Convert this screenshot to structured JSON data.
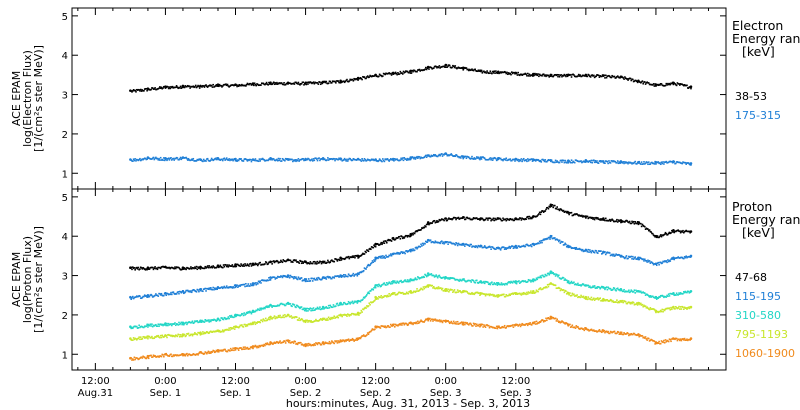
{
  "chart_data": [
    {
      "type": "scatter",
      "panel": "electron",
      "ylabel_lines": [
        "ACE EPAM",
        "log(Electron Flux)",
        "[1/(cm²s ster MeV)]"
      ],
      "legend_title_lines": [
        "Electron",
        "Energy range",
        "[keV]"
      ],
      "ylim": [
        0.6,
        5.2
      ],
      "yticks": [
        1,
        2,
        3,
        4,
        5
      ],
      "series": [
        {
          "name": "38-53",
          "color": "#000000",
          "x": [
            6,
            9,
            12,
            15,
            18,
            21,
            24,
            27,
            30,
            33,
            36,
            39,
            42,
            45,
            48,
            51,
            54,
            57,
            60,
            63,
            66,
            69,
            72,
            75,
            78,
            81,
            84,
            87,
            90,
            93,
            96,
            99,
            102
          ],
          "y": [
            3.1,
            3.15,
            3.2,
            3.22,
            3.22,
            3.25,
            3.25,
            3.28,
            3.3,
            3.3,
            3.3,
            3.32,
            3.35,
            3.42,
            3.5,
            3.55,
            3.6,
            3.7,
            3.75,
            3.68,
            3.6,
            3.58,
            3.55,
            3.52,
            3.5,
            3.5,
            3.5,
            3.48,
            3.45,
            3.35,
            3.25,
            3.3,
            3.2
          ]
        },
        {
          "name": "175-315",
          "color": "#1f7fd6",
          "x": [
            6,
            9,
            12,
            15,
            18,
            21,
            24,
            27,
            30,
            33,
            36,
            39,
            42,
            45,
            48,
            51,
            54,
            57,
            60,
            63,
            66,
            69,
            72,
            75,
            78,
            81,
            84,
            87,
            90,
            93,
            96,
            99,
            102
          ],
          "y": [
            1.35,
            1.4,
            1.38,
            1.4,
            1.35,
            1.38,
            1.36,
            1.35,
            1.38,
            1.35,
            1.36,
            1.38,
            1.37,
            1.36,
            1.35,
            1.36,
            1.4,
            1.45,
            1.5,
            1.42,
            1.4,
            1.38,
            1.36,
            1.35,
            1.33,
            1.32,
            1.33,
            1.3,
            1.3,
            1.28,
            1.28,
            1.3,
            1.25
          ]
        }
      ]
    },
    {
      "type": "scatter",
      "panel": "proton",
      "ylabel_lines": [
        "ACE EPAM",
        "log(Proton Flux)",
        "[1/(cm²s ster MeV)]"
      ],
      "legend_title_lines": [
        "Proton",
        "Energy range",
        "[keV]"
      ],
      "ylim": [
        0.6,
        5.2
      ],
      "yticks": [
        1,
        2,
        3,
        4,
        5
      ],
      "series": [
        {
          "name": "47-68",
          "color": "#000000",
          "x": [
            6,
            9,
            12,
            15,
            18,
            21,
            24,
            27,
            30,
            33,
            36,
            39,
            42,
            45,
            48,
            51,
            54,
            57,
            60,
            63,
            66,
            69,
            72,
            75,
            78,
            81,
            84,
            87,
            90,
            93,
            96,
            99,
            102
          ],
          "y": [
            3.2,
            3.2,
            3.22,
            3.2,
            3.22,
            3.25,
            3.28,
            3.3,
            3.35,
            3.4,
            3.35,
            3.35,
            3.45,
            3.5,
            3.8,
            3.95,
            4.05,
            4.35,
            4.45,
            4.48,
            4.45,
            4.45,
            4.45,
            4.5,
            4.8,
            4.6,
            4.5,
            4.45,
            4.4,
            4.35,
            4.0,
            4.15,
            4.12
          ]
        },
        {
          "name": "115-195",
          "color": "#1f7fd6",
          "x": [
            6,
            9,
            12,
            15,
            18,
            21,
            24,
            27,
            30,
            33,
            36,
            39,
            42,
            45,
            48,
            51,
            54,
            57,
            60,
            63,
            66,
            69,
            72,
            75,
            78,
            81,
            84,
            87,
            90,
            93,
            96,
            99,
            102
          ],
          "y": [
            2.45,
            2.5,
            2.55,
            2.6,
            2.65,
            2.7,
            2.75,
            2.8,
            2.95,
            3.0,
            2.9,
            2.95,
            3.0,
            3.05,
            3.45,
            3.55,
            3.65,
            3.9,
            3.85,
            3.8,
            3.75,
            3.7,
            3.75,
            3.8,
            4.0,
            3.75,
            3.65,
            3.6,
            3.5,
            3.45,
            3.3,
            3.45,
            3.5
          ]
        },
        {
          "name": "310-580",
          "color": "#22d6c6",
          "x": [
            6,
            9,
            12,
            15,
            18,
            21,
            24,
            27,
            30,
            33,
            36,
            39,
            42,
            45,
            48,
            51,
            54,
            57,
            60,
            63,
            66,
            69,
            72,
            75,
            78,
            81,
            84,
            87,
            90,
            93,
            96,
            99,
            102
          ],
          "y": [
            1.7,
            1.75,
            1.78,
            1.8,
            1.85,
            1.9,
            2.0,
            2.1,
            2.25,
            2.3,
            2.15,
            2.2,
            2.3,
            2.35,
            2.75,
            2.85,
            2.9,
            3.05,
            2.95,
            2.9,
            2.85,
            2.8,
            2.85,
            2.9,
            3.1,
            2.85,
            2.75,
            2.7,
            2.65,
            2.6,
            2.45,
            2.55,
            2.6
          ]
        },
        {
          "name": "795-1193",
          "color": "#c8e62c",
          "x": [
            6,
            9,
            12,
            15,
            18,
            21,
            24,
            27,
            30,
            33,
            36,
            39,
            42,
            45,
            48,
            51,
            54,
            57,
            60,
            63,
            66,
            69,
            72,
            75,
            78,
            81,
            84,
            87,
            90,
            93,
            96,
            99,
            102
          ],
          "y": [
            1.4,
            1.45,
            1.48,
            1.5,
            1.55,
            1.6,
            1.7,
            1.8,
            1.95,
            2.0,
            1.85,
            1.9,
            2.0,
            2.05,
            2.45,
            2.55,
            2.6,
            2.75,
            2.65,
            2.6,
            2.55,
            2.5,
            2.55,
            2.6,
            2.8,
            2.55,
            2.45,
            2.4,
            2.35,
            2.3,
            2.1,
            2.2,
            2.2
          ]
        },
        {
          "name": "1060-1900",
          "color": "#f08a1c",
          "x": [
            6,
            9,
            12,
            15,
            18,
            21,
            24,
            27,
            30,
            33,
            36,
            39,
            42,
            45,
            48,
            51,
            54,
            57,
            60,
            63,
            66,
            69,
            72,
            75,
            78,
            81,
            84,
            87,
            90,
            93,
            96,
            99,
            102
          ],
          "y": [
            0.9,
            0.95,
            1.0,
            1.0,
            1.05,
            1.1,
            1.15,
            1.2,
            1.3,
            1.35,
            1.25,
            1.3,
            1.35,
            1.4,
            1.7,
            1.75,
            1.8,
            1.9,
            1.85,
            1.8,
            1.75,
            1.7,
            1.75,
            1.8,
            1.95,
            1.75,
            1.65,
            1.6,
            1.55,
            1.5,
            1.3,
            1.4,
            1.4
          ]
        }
      ]
    }
  ],
  "time_axis": {
    "xlim": [
      -4,
      108
    ],
    "major_ticks": [
      {
        "hour": 0,
        "top": "12:00",
        "bottom": "Aug.31"
      },
      {
        "hour": 12,
        "top": "0:00",
        "bottom": "Sep. 1"
      },
      {
        "hour": 24,
        "top": "12:00",
        "bottom": "Sep. 1"
      },
      {
        "hour": 36,
        "top": "0:00",
        "bottom": "Sep. 2"
      },
      {
        "hour": 48,
        "top": "12:00",
        "bottom": "Sep. 2"
      },
      {
        "hour": 60,
        "top": "0:00",
        "bottom": "Sep. 3"
      },
      {
        "hour": 72,
        "top": "12:00",
        "bottom": "Sep. 3"
      }
    ],
    "xlabel": "hours:minutes, Aug. 31, 2013 - Sep.  3, 2013"
  }
}
